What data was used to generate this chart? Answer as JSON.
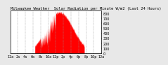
{
  "title": "Milwaukee Weather  Solar Radiation per Minute W/m2 (Last 24 Hours)",
  "title_fontsize": 4.0,
  "bg_color": "#e8e8e8",
  "plot_bg_color": "#ffffff",
  "bar_color": "#ff0000",
  "grid_color": "#999999",
  "axis_color": "#000000",
  "tick_color": "#000000",
  "ylim": [
    0,
    850
  ],
  "yticks": [
    0,
    100,
    200,
    300,
    400,
    500,
    600,
    700,
    800
  ],
  "ylabel_fontsize": 3.5,
  "xlabel_fontsize": 3.5,
  "num_points": 1440,
  "xlim": [
    0,
    1440
  ]
}
